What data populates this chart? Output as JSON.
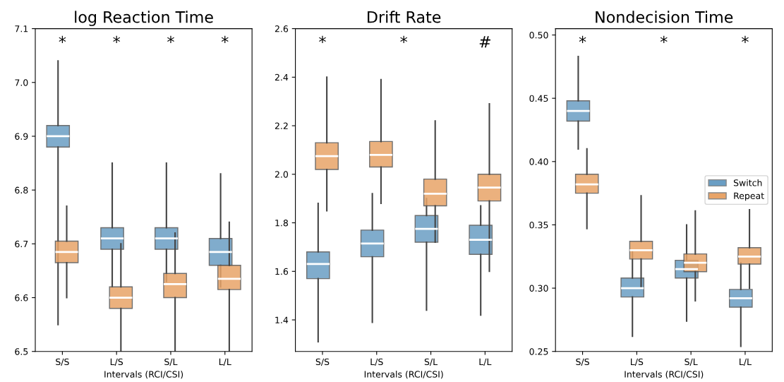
{
  "chart_data": [
    {
      "type": "box",
      "title": "log Reaction Time",
      "xlabel": "Intervals (RCI/CSI)",
      "categories": [
        "S/S",
        "L/S",
        "S/L",
        "L/L"
      ],
      "ylim": [
        6.5,
        7.1
      ],
      "yticks": [
        6.5,
        6.6,
        6.7,
        6.8,
        6.9,
        {
          "value": 7.0,
          "label": "7.0"
        },
        7.1
      ],
      "legend": "center right",
      "series": [
        {
          "name": "Switch",
          "color": "#6a9ec4",
          "boxes": [
            {
              "low": 6.55,
              "q1": 6.88,
              "median": 6.9,
              "q3": 6.92,
              "high": 7.04
            },
            {
              "low": 6.62,
              "q1": 6.69,
              "median": 6.71,
              "q3": 6.73,
              "high": 6.85
            },
            {
              "low": 6.63,
              "q1": 6.69,
              "median": 6.71,
              "q3": 6.73,
              "high": 6.85
            },
            {
              "low": 6.62,
              "q1": 6.66,
              "median": 6.685,
              "q3": 6.71,
              "high": 6.83
            }
          ]
        },
        {
          "name": "Repeat",
          "color": "#e8a468",
          "boxes": [
            {
              "low": 6.6,
              "q1": 6.665,
              "median": 6.685,
              "q3": 6.705,
              "high": 6.77
            },
            {
              "low": 6.5,
              "q1": 6.58,
              "median": 6.6,
              "q3": 6.62,
              "high": 6.7
            },
            {
              "low": 6.5,
              "q1": 6.6,
              "median": 6.625,
              "q3": 6.645,
              "high": 6.72
            },
            {
              "low": 6.5,
              "q1": 6.615,
              "median": 6.635,
              "q3": 6.66,
              "high": 6.74
            }
          ]
        }
      ],
      "annotations": [
        "*",
        "*",
        "*",
        "*"
      ]
    },
    {
      "type": "box",
      "title": "Drift Rate",
      "xlabel": "Intervals (RCI/CSI)",
      "categories": [
        "S/S",
        "L/S",
        "S/L",
        "L/L"
      ],
      "ylim": [
        1.27,
        2.6
      ],
      "yticks": [
        1.4,
        1.6,
        1.8,
        {
          "value": 2.0,
          "label": "2.0"
        },
        2.2,
        2.4,
        2.6
      ],
      "series": [
        {
          "color": "#6a9ec4",
          "boxes": [
            {
              "low": 1.31,
              "q1": 1.57,
              "median": 1.63,
              "q3": 1.68,
              "high": 1.88
            },
            {
              "low": 1.39,
              "q1": 1.66,
              "median": 1.715,
              "q3": 1.77,
              "high": 1.92
            },
            {
              "low": 1.44,
              "q1": 1.72,
              "median": 1.775,
              "q3": 1.83,
              "high": 1.9
            },
            {
              "low": 1.42,
              "q1": 1.67,
              "median": 1.73,
              "q3": 1.79,
              "high": 1.87
            }
          ]
        },
        {
          "color": "#e8a468",
          "boxes": [
            {
              "low": 1.85,
              "q1": 2.02,
              "median": 2.075,
              "q3": 2.13,
              "high": 2.4
            },
            {
              "low": 1.88,
              "q1": 2.03,
              "median": 2.08,
              "q3": 2.135,
              "high": 2.39
            },
            {
              "low": 1.72,
              "q1": 1.87,
              "median": 1.92,
              "q3": 1.98,
              "high": 2.22
            },
            {
              "low": 1.6,
              "q1": 1.89,
              "median": 1.945,
              "q3": 2.0,
              "high": 2.29
            }
          ]
        }
      ],
      "annotations": [
        "*",
        "*",
        "#"
      ]
    },
    {
      "type": "box",
      "title": "Nondecision Time",
      "xlabel": "Intervals (RCI/CSI)",
      "categories": [
        "S/S",
        "L/S",
        "S/L",
        "L/L"
      ],
      "ylim": [
        0.25,
        0.505
      ],
      "yticks": [
        {
          "value": 0.25,
          "label": "0.25"
        },
        {
          "value": 0.3,
          "label": "0.30"
        },
        {
          "value": 0.35,
          "label": "0.35"
        },
        {
          "value": 0.4,
          "label": "0.40"
        },
        {
          "value": 0.45,
          "label": "0.45"
        },
        {
          "value": 0.5,
          "label": "0.50"
        }
      ],
      "series": [
        {
          "color": "#6a9ec4",
          "boxes": [
            {
              "low": 0.41,
              "q1": 0.432,
              "median": 0.44,
              "q3": 0.448,
              "high": 0.483
            },
            {
              "low": 0.262,
              "q1": 0.293,
              "median": 0.3,
              "q3": 0.308,
              "high": 0.33
            },
            {
              "low": 0.274,
              "q1": 0.308,
              "median": 0.315,
              "q3": 0.322,
              "high": 0.35
            },
            {
              "low": 0.254,
              "q1": 0.285,
              "median": 0.292,
              "q3": 0.299,
              "high": 0.32
            }
          ]
        },
        {
          "color": "#e8a468",
          "boxes": [
            {
              "low": 0.347,
              "q1": 0.375,
              "median": 0.382,
              "q3": 0.39,
              "high": 0.41
            },
            {
              "low": 0.3,
              "q1": 0.323,
              "median": 0.33,
              "q3": 0.337,
              "high": 0.373
            },
            {
              "low": 0.29,
              "q1": 0.313,
              "median": 0.32,
              "q3": 0.327,
              "high": 0.361
            },
            {
              "low": 0.3,
              "q1": 0.319,
              "median": 0.325,
              "q3": 0.332,
              "high": 0.362
            }
          ]
        }
      ],
      "annotations": [
        "*",
        "*",
        "*"
      ]
    }
  ]
}
